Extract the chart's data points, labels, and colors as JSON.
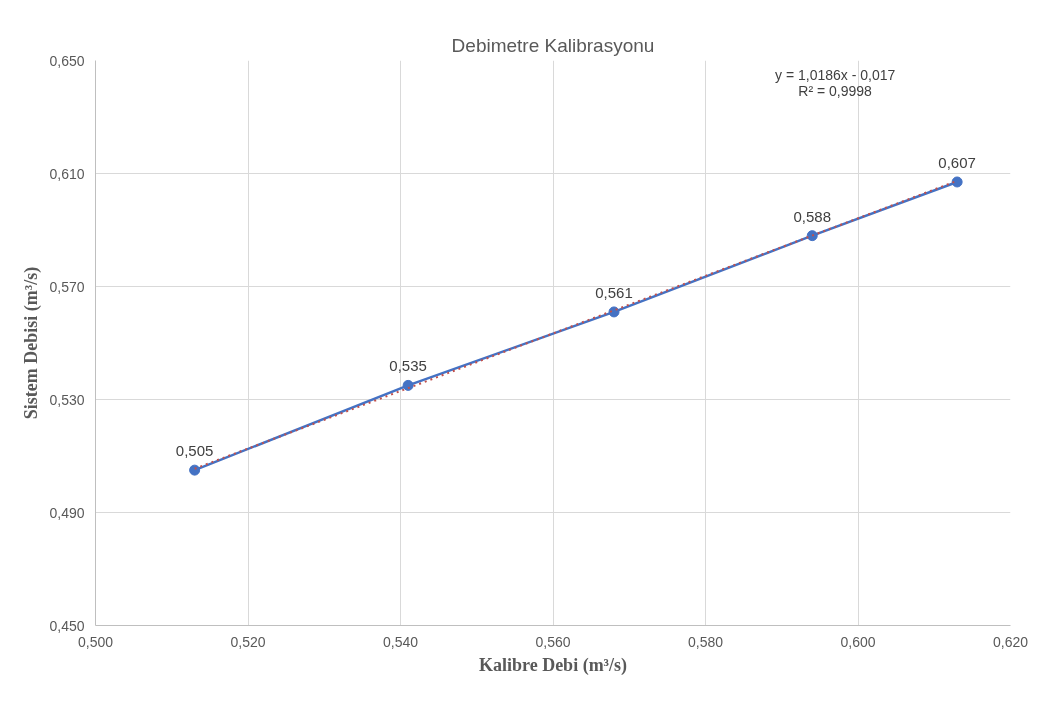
{
  "chart_data": {
    "type": "line",
    "title": "Debimetre Kalibrasyonu",
    "xlabel": "Kalibre Debi (m³/s)",
    "ylabel": "Sistem Debisi (m³/s)",
    "series": [
      {
        "color": "#4472c4",
        "x": [
          0.513,
          0.541,
          0.568,
          0.594,
          0.613
        ],
        "values": [
          0.505,
          0.535,
          0.561,
          0.588,
          0.607
        ],
        "marker": "circle",
        "line_style": "solid",
        "value_labels": [
          "0,505",
          "0,535",
          "0,561",
          "0,588",
          "0,607"
        ]
      },
      {
        "type": "line",
        "color": "#c0504d",
        "x": [
          0.513,
          0.613
        ],
        "values": [
          0.5055,
          0.6074
        ],
        "marker": "none",
        "line_style": "dotted"
      }
    ],
    "xlim": [
      0.5,
      0.62
    ],
    "ylim": [
      0.45,
      0.65
    ],
    "xticks": [
      {
        "value": 0.5,
        "label": "0,500"
      },
      {
        "value": 0.52,
        "label": "0,520"
      },
      {
        "value": 0.54,
        "label": "0,540"
      },
      {
        "value": 0.56,
        "label": "0,560"
      },
      {
        "value": 0.58,
        "label": "0,580"
      },
      {
        "value": 0.6,
        "label": "0,600"
      },
      {
        "value": 0.62,
        "label": "0,620"
      }
    ],
    "yticks": [
      {
        "value": 0.45,
        "label": "0,450"
      },
      {
        "value": 0.49,
        "label": "0,490"
      },
      {
        "value": 0.53,
        "label": "0,530"
      },
      {
        "value": 0.57,
        "label": "0,570"
      },
      {
        "value": 0.61,
        "label": "0,610"
      },
      {
        "value": 0.65,
        "label": "0,650"
      }
    ],
    "annotations": [
      "y = 1,0186x - 0,017",
      "R² = 0,9998"
    ],
    "grid": true
  }
}
